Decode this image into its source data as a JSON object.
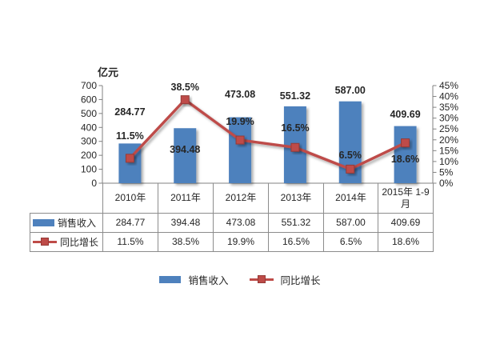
{
  "chart_data": {
    "type": "combo",
    "categories": [
      "2010年",
      "2011年",
      "2012年",
      "2013年",
      "2014年",
      "2015年 1-9月"
    ],
    "series": [
      {
        "name": "销售收入",
        "type": "bar",
        "axis": "left",
        "values": [
          284.77,
          394.48,
          473.08,
          551.32,
          587.0,
          409.69
        ],
        "labels": [
          "284.77",
          "394.48",
          "473.08",
          "551.32",
          "587.00",
          "409.69"
        ],
        "color": "#4e81bd"
      },
      {
        "name": "同比增长",
        "type": "line",
        "axis": "right",
        "values": [
          11.5,
          38.5,
          19.9,
          16.5,
          6.5,
          18.6
        ],
        "labels": [
          "11.5%",
          "38.5%",
          "19.9%",
          "16.5%",
          "6.5%",
          "18.6%"
        ],
        "color": "#be4b48",
        "marker": "square"
      }
    ],
    "left_axis": {
      "title": "亿元",
      "min": 0,
      "max": 700,
      "step": 100
    },
    "right_axis": {
      "min": 0,
      "max": 45,
      "step": 5,
      "suffix": "%"
    },
    "grid": false,
    "legend_position": "bottom",
    "data_table": true
  },
  "colors": {
    "bar": "#4e81bd",
    "line": "#be4b48",
    "marker_border": "#953a37",
    "axis": "#808080",
    "table_border": "#8c8c8c",
    "text": "#262626"
  }
}
